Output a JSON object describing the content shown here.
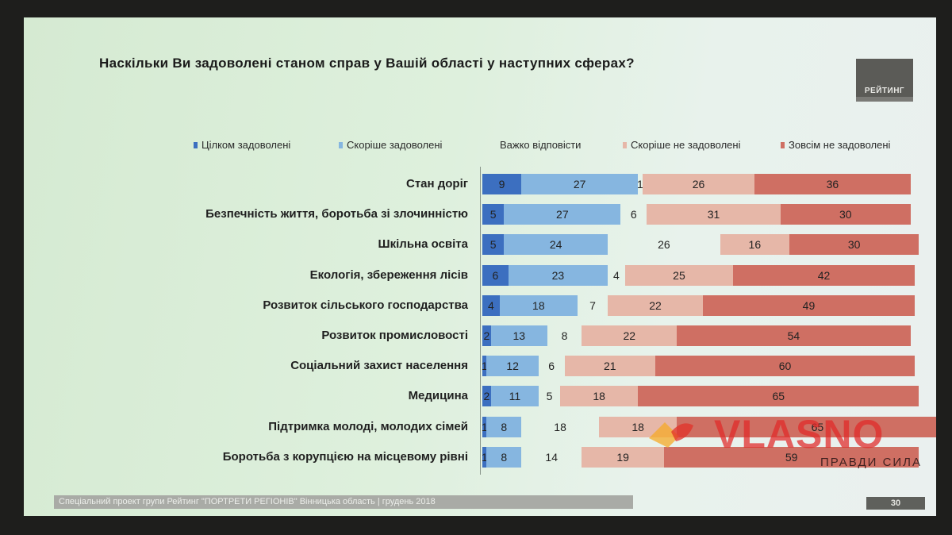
{
  "title": "Наскільки Ви задоволені станом справ у Вашій області у наступних сферах?",
  "logo_text": "РЕЙТИНГ",
  "legend": [
    {
      "label": "Цілком задоволені",
      "color": "#3c6fc0"
    },
    {
      "label": "Скоріше задоволені",
      "color": "#86b6e0"
    },
    {
      "label": "Важко відповісти",
      "color": "none"
    },
    {
      "label": "Скоріше не задоволені",
      "color": "#e6b7a8"
    },
    {
      "label": "Зовсім не задоволені",
      "color": "#cf6f63"
    }
  ],
  "chart_data": {
    "type": "bar",
    "stacked": true,
    "orientation": "horizontal",
    "categories": [
      "Стан доріг",
      "Безпечність життя, боротьба зі злочинністю",
      "Шкільна освіта",
      "Екологія, збереження лісів",
      "Розвиток сільського господарства",
      "Розвиток промисловості",
      "Соціальний захист населення",
      "Медицина",
      "Підтримка молоді, молодих сімей",
      "Боротьба з корупцією на місцевому рівні"
    ],
    "series": [
      {
        "name": "Цілком задоволені",
        "color": "#3c6fc0",
        "values": [
          9,
          5,
          5,
          6,
          4,
          2,
          1,
          2,
          1,
          1
        ]
      },
      {
        "name": "Скоріше задоволені",
        "color": "#86b6e0",
        "values": [
          27,
          27,
          24,
          23,
          18,
          13,
          12,
          11,
          8,
          8
        ]
      },
      {
        "name": "Важко відповісти",
        "color": "none",
        "values": [
          1,
          6,
          26,
          4,
          7,
          8,
          6,
          5,
          18,
          14
        ]
      },
      {
        "name": "Скоріше не задоволені",
        "color": "#e6b7a8",
        "values": [
          26,
          31,
          16,
          25,
          22,
          22,
          21,
          18,
          18,
          19
        ]
      },
      {
        "name": "Зовсім не задоволені",
        "color": "#cf6f63",
        "values": [
          36,
          30,
          30,
          42,
          49,
          54,
          60,
          65,
          65,
          59
        ]
      }
    ]
  },
  "footer_text": "Спеціальний проект групи Рейтинг \"ПОРТРЕТИ РЕГІОНІВ\" Вінницька область | грудень 2018",
  "page_number": "30",
  "watermark": {
    "brand": "VLASNO",
    "slogan": "ПРАВДИ СИЛА"
  }
}
